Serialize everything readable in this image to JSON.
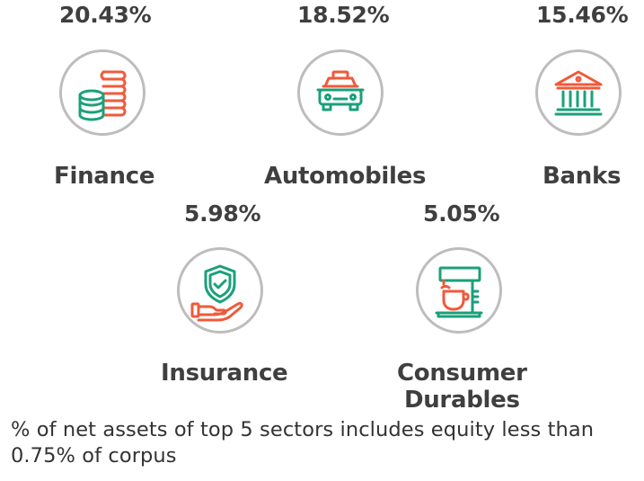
{
  "colors": {
    "green": "#1aa07a",
    "orange": "#f05a3a",
    "ring": "#bdbdbd",
    "text": "#3f3f3f"
  },
  "sectors": [
    {
      "name": "Finance",
      "percent": "20.43%",
      "icon": "coins-stack-icon"
    },
    {
      "name": "Automobiles",
      "percent": "18.52%",
      "icon": "car-icon"
    },
    {
      "name": "Banks",
      "percent": "15.46%",
      "icon": "bank-building-icon"
    },
    {
      "name": "Insurance",
      "percent": "5.98%",
      "icon": "shield-hand-icon"
    },
    {
      "name_line1": "Consumer",
      "name_line2": "Durables",
      "percent": "5.05%",
      "icon": "coffee-machine-icon"
    }
  ],
  "footnote": "% of net assets of top 5 sectors includes equity less than 0.75% of corpus"
}
